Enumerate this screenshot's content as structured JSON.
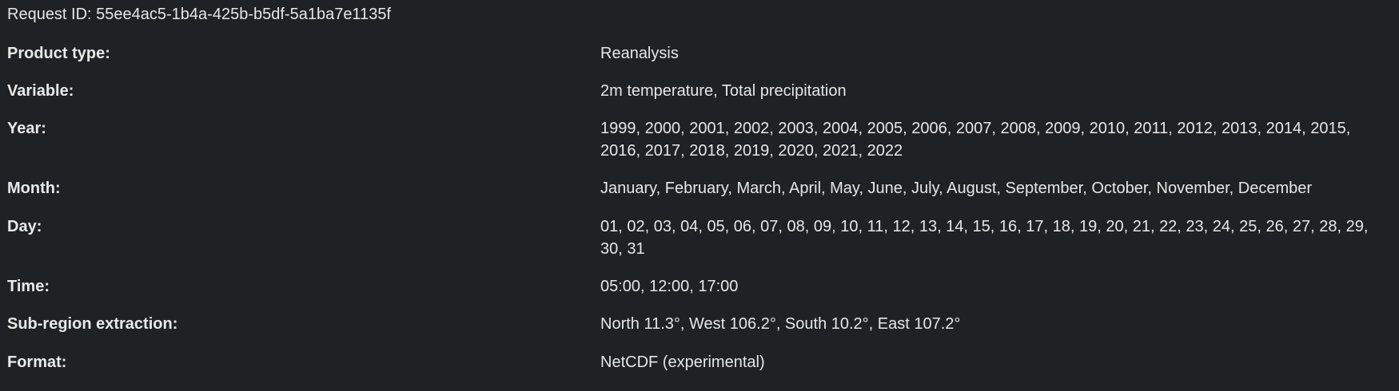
{
  "request": {
    "id_text": "Request ID: 55ee4ac5-1b4a-425b-b5df-5a1ba7e1135f"
  },
  "details": [
    {
      "label": "Product type:",
      "value": "Reanalysis"
    },
    {
      "label": "Variable:",
      "value": "2m temperature, Total precipitation"
    },
    {
      "label": "Year:",
      "value": "1999, 2000, 2001, 2002, 2003, 2004, 2005, 2006, 2007, 2008, 2009, 2010, 2011, 2012, 2013, 2014, 2015, 2016, 2017, 2018, 2019, 2020, 2021, 2022"
    },
    {
      "label": "Month:",
      "value": "January, February, March, April, May, June, July, August, September, October, November, December"
    },
    {
      "label": "Day:",
      "value": "01, 02, 03, 04, 05, 06, 07, 08, 09, 10, 11, 12, 13, 14, 15, 16, 17, 18, 19, 20, 21, 22, 23, 24, 25, 26, 27, 28, 29, 30, 31"
    },
    {
      "label": "Time:",
      "value": "05:00, 12:00, 17:00"
    },
    {
      "label": "Sub-region extraction:",
      "value": "North 11.3°, West 106.2°, South 10.2°, East 107.2°"
    },
    {
      "label": "Format:",
      "value": "NetCDF (experimental)"
    }
  ]
}
